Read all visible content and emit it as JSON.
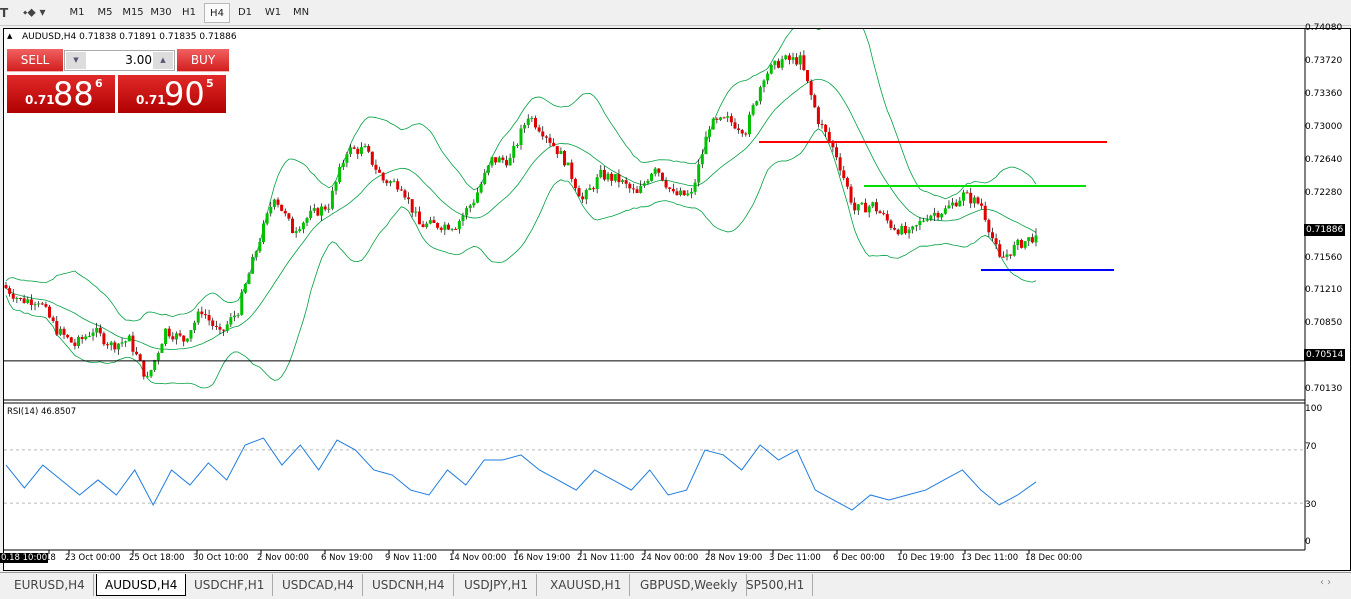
{
  "toolbar": {
    "timeframes": [
      "M1",
      "M5",
      "M15",
      "M30",
      "H1",
      "H4",
      "D1",
      "W1",
      "MN"
    ],
    "active": "H4",
    "icons": [
      "text-tool-icon",
      "line-tools-icon"
    ]
  },
  "chart": {
    "header": "AUDUSD,H4  0.71838 0.71891 0.71835 0.71886",
    "trade_panel": {
      "sell_label": "SELL",
      "buy_label": "BUY",
      "lot": "3.00",
      "sell_big": "0.71",
      "sell_mid": "88",
      "sell_small": "6",
      "buy_big": "0.71",
      "buy_mid": "90",
      "buy_small": "5"
    },
    "price_axis": [
      "0.74080",
      "0.73720",
      "0.73360",
      "0.73000",
      "0.72640",
      "0.72280",
      "0.71920",
      "0.71560",
      "0.71210",
      "0.70850",
      "0.70490",
      "0.70130"
    ],
    "current_price": "0.71886",
    "hline_price": "0.70514",
    "rsi_label": "RSI(14) 46.8507",
    "rsi_axis": [
      "100",
      "70",
      "30",
      "0"
    ],
    "time_cursor": "0.18 10:00",
    "time_axis": [
      "18",
      "23 Oct 00:00",
      "25 Oct 18:00",
      "30 Oct 10:00",
      "2 Nov 00:00",
      "6 Nov 19:00",
      "9 Nov 11:00",
      "14 Nov 00:00",
      "16 Nov 19:00",
      "21 Nov 11:00",
      "24 Nov 00:00",
      "28 Nov 19:00",
      "3 Dec 11:00",
      "6 Dec 00:00",
      "10 Dec 19:00",
      "13 Dec 11:00",
      "18 Dec 00:00"
    ]
  },
  "chart_data": {
    "type": "candlestick",
    "symbol": "AUDUSD",
    "timeframe": "H4",
    "ylim": [
      0.7013,
      0.7408
    ],
    "colors": {
      "bull": "#00c000",
      "bear": "#e00000",
      "bands": "#00a040",
      "rsi": "#1e7be0",
      "hline_black": "#000000",
      "hline_red": "#ff0000",
      "hline_green": "#00e000",
      "hline_blue": "#0000ff"
    },
    "approx_closes": [
      0.71344,
      0.7118,
      0.7118,
      0.70852,
      0.70688,
      0.70852,
      0.70688,
      0.70743,
      0.70305,
      0.70852,
      0.70743,
      0.71071,
      0.70797,
      0.71071,
      0.71727,
      0.72329,
      0.71946,
      0.7211,
      0.7222,
      0.72822,
      0.72822,
      0.72493,
      0.72439,
      0.72001,
      0.72001,
      0.72001,
      0.72275,
      0.72712,
      0.72712,
      0.73205,
      0.72986,
      0.72712,
      0.72275,
      0.72548,
      0.72493,
      0.72329,
      0.72658,
      0.72329,
      0.72329,
      0.73095,
      0.7315,
      0.7304,
      0.73642,
      0.73806,
      0.73806,
      0.7315,
      0.72767,
      0.72165,
      0.7222,
      0.72001,
      0.71892,
      0.7211,
      0.72165,
      0.72329,
      0.7222,
      0.71618,
      0.71782,
      0.71886
    ],
    "overlay": "Bollinger Bands",
    "horizontal_lines": [
      {
        "price": 0.72909,
        "color": "red"
      },
      {
        "price": 0.72428,
        "color": "green"
      },
      {
        "price": 0.71509,
        "color": "blue"
      },
      {
        "price": 0.70514,
        "color": "black"
      }
    ],
    "rsi": {
      "period": 14,
      "current": 46.8507,
      "levels": [
        70,
        30
      ],
      "ylim": [
        0,
        100
      ],
      "approx_values": [
        58.6,
        41.4,
        58.6,
        47.4,
        36.1,
        47.4,
        36.1,
        54.9,
        28.6,
        54.9,
        43.6,
        60.2,
        47.4,
        73.7,
        78.9,
        58.6,
        73.7,
        54.9,
        77.4,
        69.9,
        54.9,
        51.1,
        39.8,
        36.1,
        54.9,
        43.6,
        62.4,
        62.4,
        66.2,
        54.9,
        47.4,
        39.8,
        54.9,
        47.4,
        39.8,
        54.9,
        36.1,
        39.8,
        69.9,
        66.2,
        54.9,
        73.7,
        62.4,
        69.9,
        39.8,
        32.3,
        24.8,
        36.1,
        32.3,
        36.1,
        39.8,
        47.4,
        54.9,
        39.8,
        28.6,
        36.1,
        45.9
      ]
    }
  },
  "tabs": [
    "EURUSD,H4",
    "AUDUSD,H4",
    "USDCHF,H1",
    "USDCAD,H4",
    "USDCNH,H4",
    "USDJPY,H1",
    "XAUUSD,H1",
    "GBPUSD,Weekly",
    "SP500,H1"
  ],
  "active_tab": "AUDUSD,H4"
}
